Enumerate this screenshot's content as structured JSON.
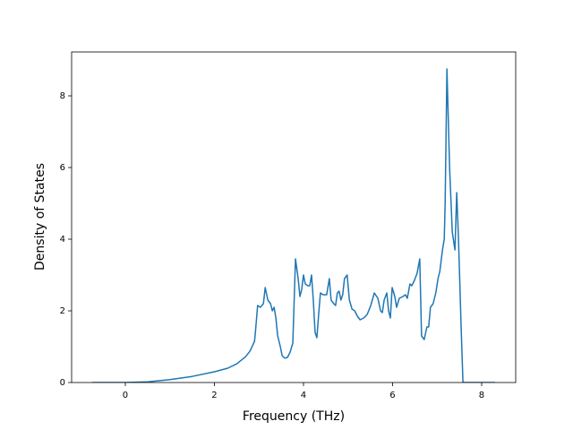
{
  "chart_data": {
    "type": "line",
    "xlabel": "Frequency (THz)",
    "ylabel": "Density of States",
    "xlim": [
      -1.206,
      8.764
    ],
    "ylim": [
      0,
      9.225
    ],
    "xticks": [
      0,
      2,
      4,
      6,
      8
    ],
    "yticks": [
      0,
      2,
      4,
      6,
      8
    ],
    "color": "#1f77b4",
    "x": [
      -0.75,
      0,
      0.5,
      1,
      1.5,
      2,
      2.3,
      2.5,
      2.7,
      2.8,
      2.9,
      2.92,
      2.97,
      3.03,
      3.1,
      3.14,
      3.2,
      3.26,
      3.3,
      3.34,
      3.38,
      3.42,
      3.48,
      3.52,
      3.58,
      3.64,
      3.7,
      3.76,
      3.82,
      3.88,
      3.92,
      3.96,
      4.0,
      4.04,
      4.1,
      4.14,
      4.18,
      4.22,
      4.26,
      4.3,
      4.34,
      4.38,
      4.44,
      4.52,
      4.58,
      4.62,
      4.68,
      4.72,
      4.76,
      4.8,
      4.84,
      4.88,
      4.92,
      4.98,
      5.03,
      5.09,
      5.15,
      5.21,
      5.27,
      5.35,
      5.43,
      5.51,
      5.59,
      5.67,
      5.73,
      5.77,
      5.81,
      5.87,
      5.91,
      5.95,
      5.99,
      6.05,
      6.09,
      6.15,
      6.23,
      6.29,
      6.33,
      6.39,
      6.43,
      6.49,
      6.55,
      6.61,
      6.65,
      6.71,
      6.77,
      6.81,
      6.85,
      6.91,
      6.97,
      7.02,
      7.06,
      7.12,
      7.16,
      7.18,
      7.22,
      7.28,
      7.34,
      7.4,
      7.44,
      7.48,
      7.54,
      7.58,
      8.3
    ],
    "values": [
      0,
      0,
      0.02,
      0.08,
      0.17,
      0.3,
      0.4,
      0.52,
      0.72,
      0.88,
      1.15,
      1.4,
      2.15,
      2.1,
      2.2,
      2.65,
      2.3,
      2.2,
      2.0,
      2.1,
      1.8,
      1.3,
      1.0,
      0.75,
      0.68,
      0.7,
      0.85,
      1.1,
      3.45,
      2.9,
      2.4,
      2.6,
      3.0,
      2.75,
      2.7,
      2.7,
      3.0,
      2.3,
      1.4,
      1.25,
      1.9,
      2.5,
      2.45,
      2.45,
      2.9,
      2.3,
      2.2,
      2.15,
      2.5,
      2.55,
      2.3,
      2.45,
      2.9,
      3.0,
      2.3,
      2.05,
      2.0,
      1.85,
      1.75,
      1.8,
      1.9,
      2.15,
      2.5,
      2.35,
      2.0,
      1.95,
      2.3,
      2.5,
      2.0,
      1.8,
      2.65,
      2.4,
      2.1,
      2.35,
      2.4,
      2.45,
      2.35,
      2.75,
      2.7,
      2.85,
      3.05,
      3.45,
      1.3,
      1.2,
      1.55,
      1.55,
      2.1,
      2.2,
      2.5,
      2.9,
      3.1,
      3.7,
      4.0,
      5.0,
      8.75,
      6.0,
      4.2,
      3.7,
      5.3,
      4.0,
      1.5,
      0,
      0
    ]
  }
}
